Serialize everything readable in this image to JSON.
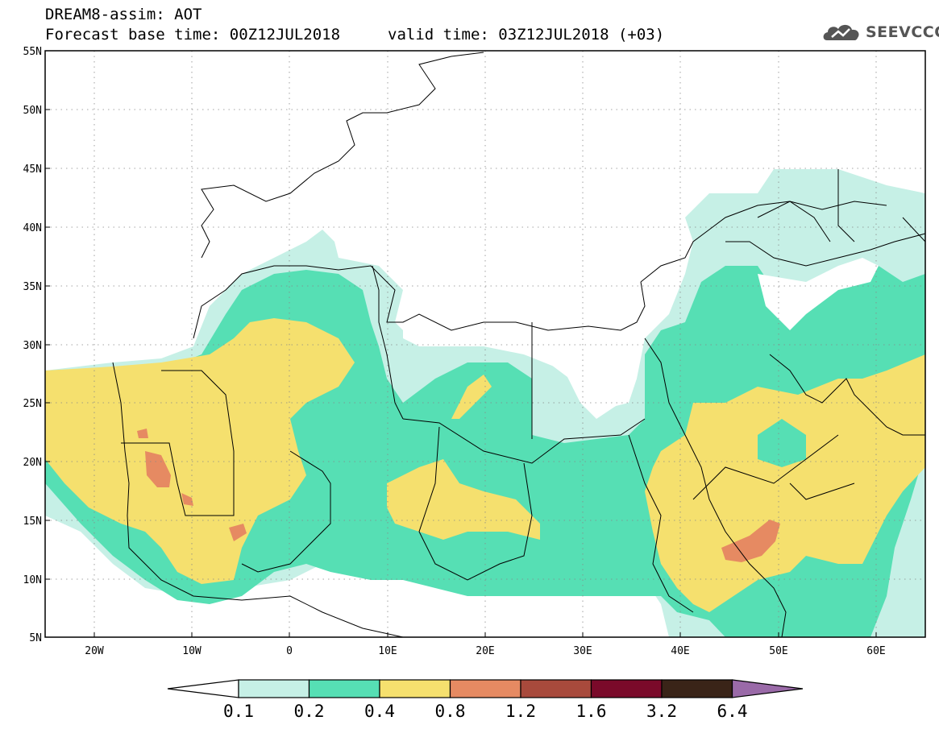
{
  "title": {
    "line1": "DREAM8-assim: AOT",
    "line2": "Forecast base time: 00Z12JUL2018",
    "valid": "valid time: 03Z12JUL2018 (+03)"
  },
  "logo": {
    "text": "SEEVCCC",
    "icon": "cloud-icon"
  },
  "axes": {
    "lat_labels": [
      "55N",
      "50N",
      "45N",
      "40N",
      "35N",
      "30N",
      "25N",
      "20N",
      "15N",
      "10N",
      "5N"
    ],
    "lon_labels": [
      "20W",
      "10W",
      "0",
      "10E",
      "20E",
      "30E",
      "40E",
      "50E",
      "60E"
    ],
    "lon_range": [
      -25,
      65
    ],
    "lat_range": [
      5,
      55
    ]
  },
  "colorbar": {
    "labels": [
      "0.1",
      "0.2",
      "0.4",
      "0.8",
      "1.2",
      "1.6",
      "3.2",
      "6.4"
    ],
    "colors": [
      "#ffffff",
      "#c6f0e6",
      "#56dfb4",
      "#f5e06e",
      "#e68a62",
      "#a84a3c",
      "#7a0a2a",
      "#3a2418",
      "#9a6aa8"
    ]
  },
  "colors": {
    "frame": "#000000",
    "grid": "#888888",
    "c01": "#c6f0e6",
    "c02": "#56dfb4",
    "c04": "#f5e06e",
    "c08": "#e68a62"
  }
}
